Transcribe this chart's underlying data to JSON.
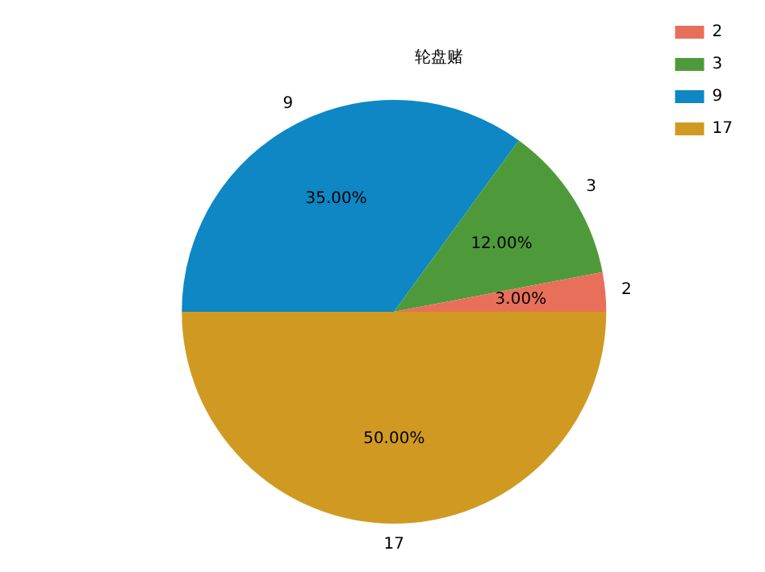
{
  "chart_data": {
    "type": "pie",
    "title": "轮盘赌",
    "categories": [
      "2",
      "3",
      "9",
      "17"
    ],
    "values": [
      3,
      12,
      35,
      50
    ],
    "value_labels": [
      "3.00%",
      "12.00%",
      "35.00%",
      "50.00%"
    ],
    "colors": [
      "#e8705a",
      "#4e9a3a",
      "#0e87c4",
      "#d09a22"
    ],
    "legend": "top right"
  }
}
